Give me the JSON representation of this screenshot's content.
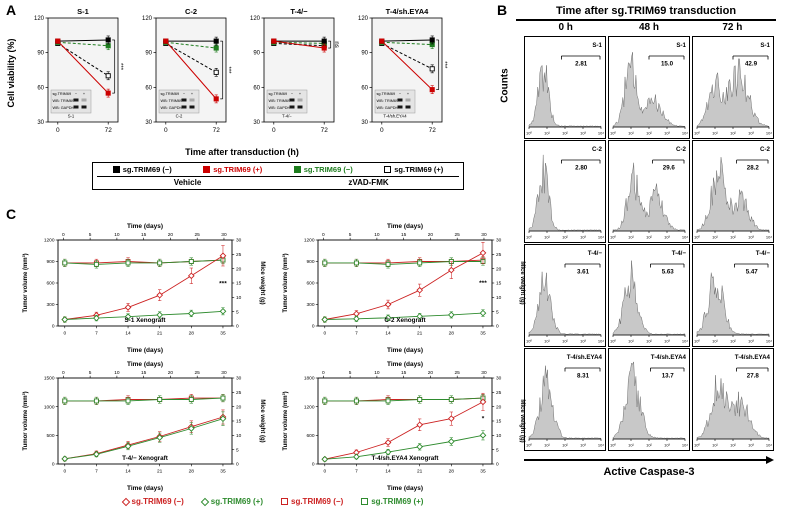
{
  "figure": {
    "panel_a_label": "A",
    "panel_b_label": "B",
    "panel_c_label": "C"
  },
  "panel_a": {
    "ylabel": "Cell viability (%)",
    "xlabel": "Time after transduction (h)",
    "ylim": [
      30,
      120
    ],
    "yticks": [
      30,
      60,
      90,
      120
    ],
    "xticks": [
      0,
      72
    ],
    "inset_lines": [
      "sg.TRIM69",
      "WB: TRIM69",
      "WB: GAPDH"
    ],
    "charts": [
      {
        "title": "S-1",
        "cell_label": "S-1",
        "sig": "***",
        "series": [
          {
            "name": "sg.TRIM69 (−) Vehicle",
            "color": "#000000",
            "dash": false,
            "open": false,
            "values": [
              100,
              101
            ]
          },
          {
            "name": "sg.TRIM69 (+) Vehicle",
            "color": "#cc0000",
            "dash": false,
            "open": false,
            "values": [
              100,
              55
            ]
          },
          {
            "name": "sg.TRIM69 (−) zVAD-FMK",
            "color": "#1e7d1e",
            "dash": true,
            "open": false,
            "values": [
              99,
              96
            ]
          },
          {
            "name": "sg.TRIM69 (+) zVAD-FMK",
            "color": "#000000",
            "dash": true,
            "open": true,
            "values": [
              98,
              70
            ]
          }
        ]
      },
      {
        "title": "C-2",
        "cell_label": "C-2",
        "sig": "***",
        "series": [
          {
            "name": "sg.TRIM69 (−) Vehicle",
            "color": "#000000",
            "dash": false,
            "open": false,
            "values": [
              100,
              100
            ]
          },
          {
            "name": "sg.TRIM69 (+) Vehicle",
            "color": "#cc0000",
            "dash": false,
            "open": false,
            "values": [
              100,
              50
            ]
          },
          {
            "name": "sg.TRIM69 (−) zVAD-FMK",
            "color": "#1e7d1e",
            "dash": true,
            "open": false,
            "values": [
              99,
              94
            ]
          },
          {
            "name": "sg.TRIM69 (+) zVAD-FMK",
            "color": "#000000",
            "dash": true,
            "open": true,
            "values": [
              98,
              73
            ]
          }
        ]
      },
      {
        "title": "T-4/−",
        "cell_label": "T-4/−",
        "sig": "ns",
        "series": [
          {
            "name": "sg.TRIM69 (−) Vehicle",
            "color": "#000000",
            "dash": false,
            "open": false,
            "values": [
              100,
              100
            ]
          },
          {
            "name": "sg.TRIM69 (+) Vehicle",
            "color": "#cc0000",
            "dash": false,
            "open": false,
            "values": [
              100,
              94
            ]
          },
          {
            "name": "sg.TRIM69 (−) zVAD-FMK",
            "color": "#1e7d1e",
            "dash": true,
            "open": false,
            "values": [
              99,
              98
            ]
          },
          {
            "name": "sg.TRIM69 (+) zVAD-FMK",
            "color": "#000000",
            "dash": true,
            "open": true,
            "values": [
              98,
              96
            ]
          }
        ]
      },
      {
        "title": "T-4/sh.EYA4",
        "cell_label": "T-4/sh.EYA4",
        "sig": "***",
        "series": [
          {
            "name": "sg.TRIM69 (−) Vehicle",
            "color": "#000000",
            "dash": false,
            "open": false,
            "values": [
              100,
              101
            ]
          },
          {
            "name": "sg.TRIM69 (+) Vehicle",
            "color": "#cc0000",
            "dash": false,
            "open": false,
            "values": [
              100,
              58
            ]
          },
          {
            "name": "sg.TRIM69 (−) zVAD-FMK",
            "color": "#1e7d1e",
            "dash": true,
            "open": false,
            "values": [
              99,
              97
            ]
          },
          {
            "name": "sg.TRIM69 (+) zVAD-FMK",
            "color": "#000000",
            "dash": true,
            "open": true,
            "values": [
              98,
              76
            ]
          }
        ]
      }
    ],
    "legend": {
      "items": [
        {
          "label": "sg.TRIM69 (−)",
          "color": "#000000",
          "text_color": "#000000",
          "marker": "square",
          "open": false
        },
        {
          "label": "sg.TRIM69 (+)",
          "color": "#cc0000",
          "text_color": "#cc0000",
          "marker": "square",
          "open": false
        },
        {
          "label": "sg.TRIM69 (−)",
          "color": "#1e7d1e",
          "text_color": "#1e7d1e",
          "marker": "square",
          "open": false
        },
        {
          "label": "sg.TRIM69 (+)",
          "color": "#000000",
          "text_color": "#000000",
          "marker": "square",
          "open": true
        }
      ],
      "groups": [
        "Vehicle",
        "zVAD-FMK"
      ]
    }
  },
  "panel_b": {
    "title": "Time after sg.TRIM69 transduction",
    "col_headers": [
      "0 h",
      "48 h",
      "72 h"
    ],
    "ylabel": "Counts",
    "xlabel": "Active Caspase-3",
    "xticks": [
      "10⁰",
      "10¹",
      "10²",
      "10³",
      "10⁴"
    ],
    "rows": [
      {
        "label": "S-1",
        "cells": [
          {
            "pct": "2.81",
            "gate": 0.45,
            "peaks": [
              [
                0.2,
                1,
                0.07
              ]
            ]
          },
          {
            "pct": "15.0",
            "gate": 0.5,
            "peaks": [
              [
                0.24,
                1,
                0.08
              ],
              [
                0.55,
                0.5,
                0.12
              ]
            ]
          },
          {
            "pct": "42.9",
            "gate": 0.5,
            "peaks": [
              [
                0.25,
                0.75,
                0.09
              ],
              [
                0.58,
                0.9,
                0.13
              ]
            ]
          }
        ]
      },
      {
        "label": "C-2",
        "cells": [
          {
            "pct": "2.80",
            "gate": 0.45,
            "peaks": [
              [
                0.2,
                1,
                0.07
              ]
            ]
          },
          {
            "pct": "29.6",
            "gate": 0.55,
            "peaks": [
              [
                0.28,
                0.9,
                0.08
              ],
              [
                0.6,
                0.6,
                0.1
              ]
            ]
          },
          {
            "pct": "28.2",
            "gate": 0.55,
            "peaks": [
              [
                0.3,
                1,
                0.1
              ],
              [
                0.62,
                0.55,
                0.1
              ]
            ]
          }
        ]
      },
      {
        "label": "T-4/−",
        "cells": [
          {
            "pct": "3.61",
            "gate": 0.5,
            "peaks": [
              [
                0.22,
                1,
                0.08
              ]
            ]
          },
          {
            "pct": "5.63",
            "gate": 0.52,
            "peaks": [
              [
                0.25,
                1,
                0.09
              ]
            ]
          },
          {
            "pct": "5.47",
            "gate": 0.52,
            "peaks": [
              [
                0.26,
                1,
                0.1
              ]
            ]
          }
        ]
      },
      {
        "label": "T-4/sh.EYA4",
        "cells": [
          {
            "pct": "8.31",
            "gate": 0.5,
            "peaks": [
              [
                0.24,
                1,
                0.09
              ]
            ]
          },
          {
            "pct": "13.7",
            "gate": 0.52,
            "peaks": [
              [
                0.28,
                1,
                0.1
              ]
            ]
          },
          {
            "pct": "27.8",
            "gate": 0.55,
            "peaks": [
              [
                0.3,
                0.9,
                0.1
              ],
              [
                0.6,
                0.6,
                0.12
              ]
            ]
          }
        ]
      }
    ]
  },
  "panel_c": {
    "xlabel_top": "Time (days)",
    "xlabel_bottom": "Time (days)",
    "ylabel_left": "Tumor volume (mm³)",
    "ylabel_right": "Mice weight (g)",
    "xticks_top": [
      0,
      5,
      10,
      15,
      20,
      25,
      30
    ],
    "xticks_bottom": [
      0,
      7,
      14,
      21,
      28,
      35
    ],
    "yticks_right": [
      0,
      5,
      10,
      15,
      20,
      25,
      30
    ],
    "days": [
      0,
      7,
      14,
      21,
      28,
      35
    ],
    "charts": [
      {
        "title": "S-1 Xenograft",
        "ylim_left": [
          0,
          1200
        ],
        "yticks_left": [
          0,
          300,
          600,
          900,
          1200
        ],
        "sig": "***",
        "tumor_neg": [
          90,
          150,
          260,
          430,
          700,
          980
        ],
        "tumor_pos": [
          90,
          110,
          130,
          155,
          175,
          205
        ],
        "weight_neg": [
          22,
          22,
          22.5,
          22,
          22.5,
          23
        ],
        "weight_pos": [
          22,
          21.5,
          22,
          22,
          22.5,
          23
        ]
      },
      {
        "title": "C-2 Xenograft",
        "ylim_left": [
          0,
          1200
        ],
        "yticks_left": [
          0,
          300,
          600,
          900,
          1200
        ],
        "sig": "***",
        "tumor_neg": [
          90,
          170,
          300,
          500,
          780,
          1020
        ],
        "tumor_pos": [
          90,
          100,
          115,
          135,
          155,
          180
        ],
        "weight_neg": [
          22,
          22,
          22,
          22.5,
          22.5,
          23
        ],
        "weight_pos": [
          22,
          22,
          21.5,
          22,
          22.5,
          22.5
        ]
      },
      {
        "title": "T-4/− Xenograft",
        "ylim_left": [
          0,
          1500
        ],
        "yticks_left": [
          0,
          500,
          1000,
          1500
        ],
        "sig": "",
        "tumor_neg": [
          90,
          180,
          330,
          480,
          650,
          820
        ],
        "tumor_pos": [
          90,
          170,
          310,
          460,
          620,
          790
        ],
        "weight_neg": [
          22,
          22,
          22.5,
          22.5,
          23,
          23
        ],
        "weight_pos": [
          22,
          22,
          22,
          22.5,
          22.5,
          23
        ]
      },
      {
        "title": "T-4/sh.EYA4 Xenograft",
        "ylim_left": [
          0,
          1800
        ],
        "yticks_left": [
          0,
          600,
          1200,
          1800
        ],
        "sig": "*",
        "tumor_neg": [
          100,
          240,
          450,
          820,
          950,
          1300
        ],
        "tumor_pos": [
          100,
          150,
          250,
          360,
          470,
          600
        ],
        "weight_neg": [
          22,
          22,
          22.5,
          22.5,
          22.5,
          23
        ],
        "weight_pos": [
          22,
          22,
          22,
          22.5,
          22.5,
          23
        ]
      }
    ],
    "legend": [
      {
        "label": "sg.TRIM69 (−)",
        "color": "#cc2222",
        "text_color": "#cc2222",
        "marker": "diamond",
        "open": true
      },
      {
        "label": "sg.TRIM69 (+)",
        "color": "#2e8b2e",
        "text_color": "#2e8b2e",
        "marker": "diamond",
        "open": true
      },
      {
        "label": "sg.TRIM69 (−)",
        "color": "#cc2222",
        "text_color": "#cc2222",
        "marker": "square",
        "open": true
      },
      {
        "label": "sg.TRIM69 (+)",
        "color": "#2e8b2e",
        "text_color": "#2e8b2e",
        "marker": "square",
        "open": true
      }
    ]
  }
}
